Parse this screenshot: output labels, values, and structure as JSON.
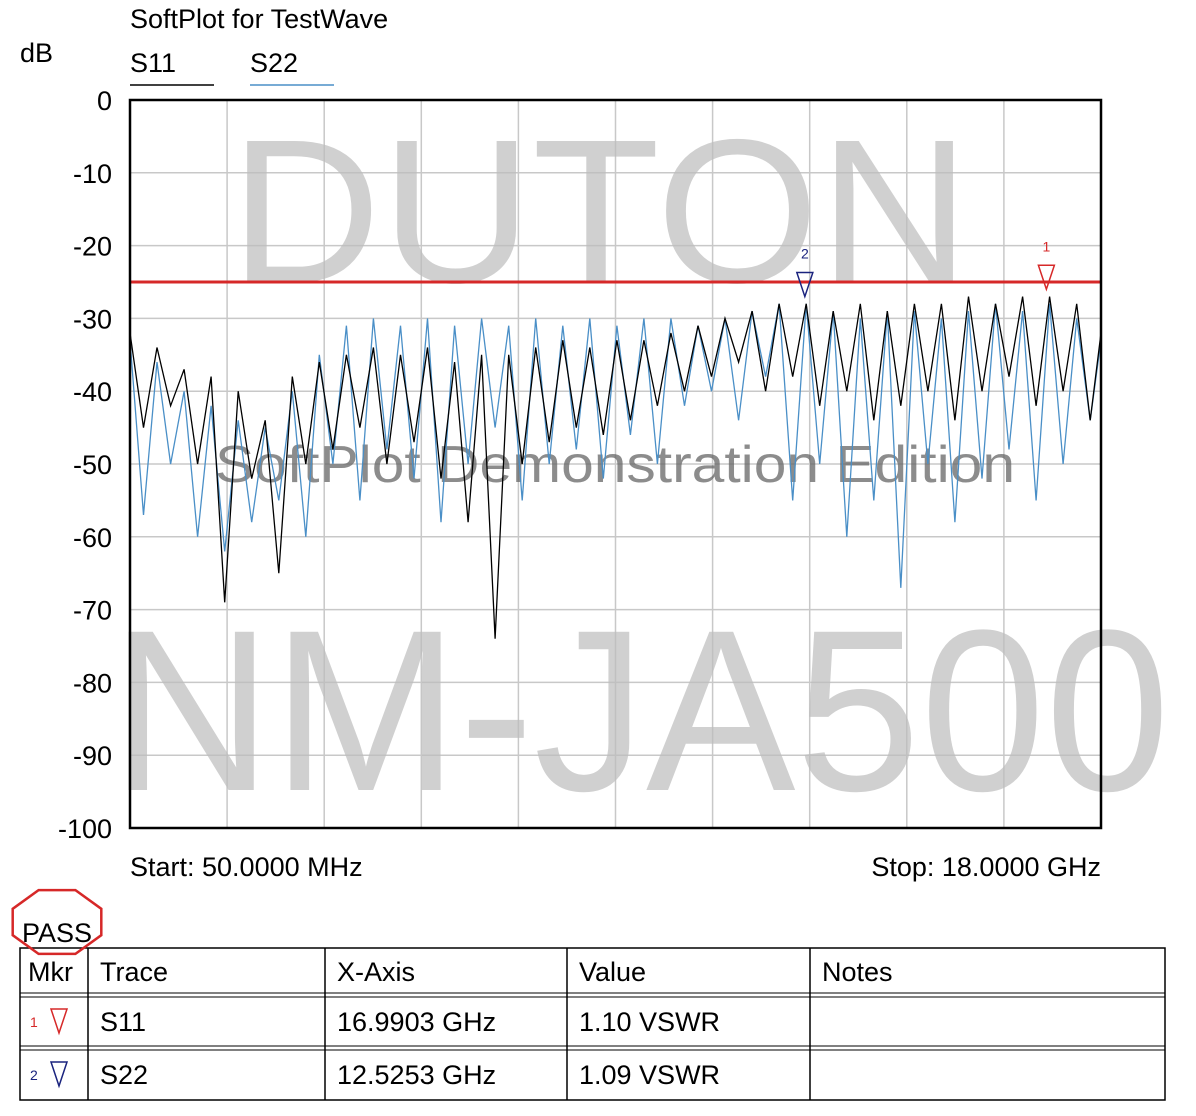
{
  "chart_data": {
    "type": "line",
    "title": "SoftPlot for TestWave",
    "ylabel": "dB",
    "start_label": "Start: 50.0000 MHz",
    "stop_label": "Stop: 18.0000 GHz",
    "xlim": [
      0.05,
      18
    ],
    "ylim": [
      -100,
      0
    ],
    "yticks": [
      0,
      -10,
      -20,
      -30,
      -40,
      -50,
      -60,
      -70,
      -80,
      -90,
      -100
    ],
    "grid": true,
    "limit": -25,
    "limit_color": "#d62828",
    "x": [
      0.05,
      0.3,
      0.55,
      0.8,
      1.05,
      1.3,
      1.55,
      1.8,
      2.05,
      2.3,
      2.55,
      2.8,
      3.05,
      3.3,
      3.55,
      3.8,
      4.05,
      4.3,
      4.55,
      4.8,
      5.05,
      5.3,
      5.55,
      5.8,
      6.05,
      6.3,
      6.55,
      6.8,
      7.05,
      7.3,
      7.55,
      7.8,
      8.05,
      8.3,
      8.55,
      8.8,
      9.05,
      9.3,
      9.55,
      9.8,
      10.05,
      10.3,
      10.55,
      10.8,
      11.05,
      11.3,
      11.55,
      11.8,
      12.05,
      12.3,
      12.55,
      12.8,
      13.05,
      13.3,
      13.55,
      13.8,
      14.05,
      14.3,
      14.55,
      14.8,
      15.05,
      15.3,
      15.55,
      15.8,
      16.05,
      16.3,
      16.55,
      16.8,
      17.05,
      17.3,
      17.55,
      17.8,
      18
    ],
    "series": [
      {
        "name": "S11",
        "color": "#000000",
        "values": [
          -32,
          -45,
          -34,
          -42,
          -37,
          -50,
          -38,
          -69,
          -40,
          -52,
          -44,
          -65,
          -38,
          -50,
          -36,
          -48,
          -35,
          -45,
          -34,
          -50,
          -35,
          -47,
          -34,
          -52,
          -36,
          -58,
          -35,
          -74,
          -35,
          -50,
          -34,
          -47,
          -33,
          -45,
          -34,
          -46,
          -33,
          -44,
          -33,
          -42,
          -32,
          -40,
          -31,
          -38,
          -30,
          -36,
          -29,
          -40,
          -28,
          -38,
          -28,
          -42,
          -29,
          -40,
          -28,
          -44,
          -29,
          -42,
          -28,
          -40,
          -28,
          -44,
          -27,
          -40,
          -28,
          -38,
          -27,
          -42,
          -27,
          -40,
          -28,
          -44,
          -32
        ]
      },
      {
        "name": "S22",
        "color": "#4a8fc7",
        "values": [
          -33,
          -57,
          -36,
          -50,
          -40,
          -60,
          -42,
          -62,
          -44,
          -58,
          -45,
          -55,
          -40,
          -60,
          -35,
          -50,
          -31,
          -55,
          -30,
          -48,
          -31,
          -52,
          -30,
          -58,
          -31,
          -50,
          -30,
          -45,
          -31,
          -55,
          -30,
          -50,
          -31,
          -48,
          -30,
          -52,
          -31,
          -46,
          -30,
          -50,
          -30,
          -42,
          -31,
          -40,
          -30,
          -44,
          -29,
          -38,
          -28,
          -55,
          -28,
          -50,
          -29,
          -60,
          -30,
          -55,
          -29,
          -67,
          -29,
          -50,
          -30,
          -58,
          -29,
          -52,
          -28,
          -48,
          -29,
          -55,
          -28,
          -50,
          -30,
          -44,
          -33
        ]
      }
    ],
    "markers": [
      {
        "label": "1",
        "x": 16.9903,
        "value": -26,
        "color": "#d62828"
      },
      {
        "label": "2",
        "x": 12.5253,
        "value": -27,
        "color": "#1a237e"
      }
    ],
    "watermarks": [
      "DUTON",
      "NM-JA500",
      "SoftPlot Demonstration Edition"
    ]
  },
  "table": {
    "stamp": "PASS",
    "columns": [
      "Mkr",
      "Trace",
      "X-Axis",
      "Value",
      "Notes"
    ],
    "rows": [
      [
        "1",
        "S11",
        "16.9903 GHz",
        "1.10 VSWR"
      ],
      [
        "2",
        "S22",
        "12.5253 GHz",
        "1.09 VSWR"
      ]
    ]
  }
}
